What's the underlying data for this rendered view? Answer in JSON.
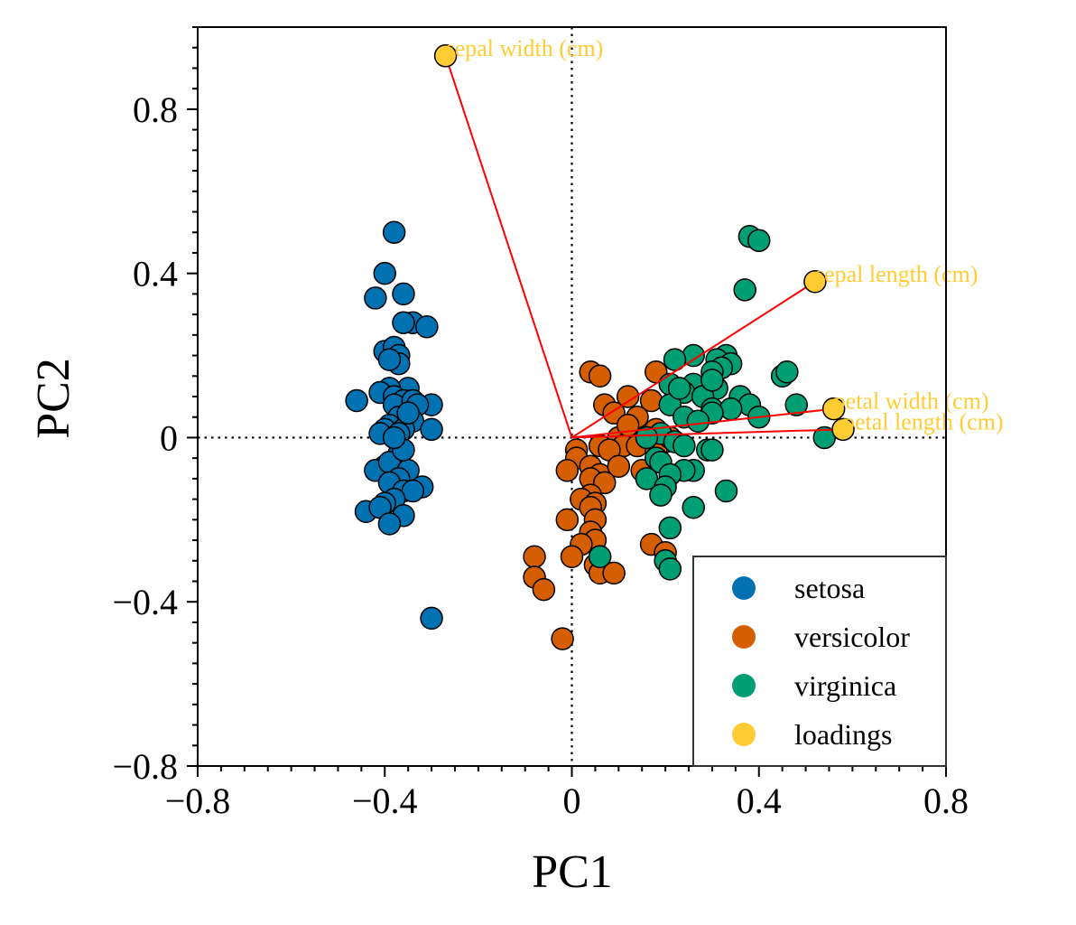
{
  "chart_data": {
    "type": "scatter",
    "title": "",
    "xlabel": "PC1",
    "ylabel": "PC2",
    "xlim": [
      -0.8,
      0.8
    ],
    "ylim": [
      -0.8,
      1.0
    ],
    "xticks": [
      -0.8,
      -0.4,
      0,
      0.4,
      0.8
    ],
    "xtick_labels": [
      "−0.8",
      "−0.4",
      "0",
      "0.4",
      "0.8"
    ],
    "yticks": [
      -0.8,
      -0.4,
      0,
      0.4,
      0.8
    ],
    "ytick_labels": [
      "−0.8",
      "−0.4",
      "0",
      "0.4",
      "0.8"
    ],
    "grid": false,
    "reference_lines": {
      "x": 0,
      "y": 0,
      "style": "dotted"
    },
    "legend": {
      "position": "lower-right",
      "entries": [
        "setosa",
        "versicolor",
        "virginica",
        "loadings"
      ]
    },
    "series": [
      {
        "name": "setosa",
        "color": "#0072B2",
        "points": [
          [
            -0.38,
            0.5
          ],
          [
            -0.4,
            0.4
          ],
          [
            -0.42,
            0.34
          ],
          [
            -0.36,
            0.35
          ],
          [
            -0.34,
            0.28
          ],
          [
            -0.36,
            0.28
          ],
          [
            -0.31,
            0.27
          ],
          [
            -0.4,
            0.21
          ],
          [
            -0.38,
            0.22
          ],
          [
            -0.37,
            0.2
          ],
          [
            -0.37,
            0.18
          ],
          [
            -0.39,
            0.19
          ],
          [
            -0.35,
            0.12
          ],
          [
            -0.39,
            0.12
          ],
          [
            -0.41,
            0.11
          ],
          [
            -0.46,
            0.09
          ],
          [
            -0.38,
            0.1
          ],
          [
            -0.36,
            0.09
          ],
          [
            -0.38,
            0.08
          ],
          [
            -0.34,
            0.09
          ],
          [
            -0.3,
            0.08
          ],
          [
            -0.33,
            0.08
          ],
          [
            -0.37,
            0.05
          ],
          [
            -0.34,
            0.04
          ],
          [
            -0.39,
            0.03
          ],
          [
            -0.36,
            0.02
          ],
          [
            -0.4,
            0.02
          ],
          [
            -0.3,
            0.02
          ],
          [
            -0.41,
            0.01
          ],
          [
            -0.37,
            0.01
          ],
          [
            -0.37,
            -0.04
          ],
          [
            -0.4,
            -0.07
          ],
          [
            -0.42,
            -0.08
          ],
          [
            -0.39,
            -0.06
          ],
          [
            -0.35,
            -0.08
          ],
          [
            -0.37,
            -0.1
          ],
          [
            -0.39,
            -0.11
          ],
          [
            -0.32,
            -0.12
          ],
          [
            -0.36,
            -0.13
          ],
          [
            -0.34,
            -0.13
          ],
          [
            -0.38,
            -0.15
          ],
          [
            -0.4,
            -0.16
          ],
          [
            -0.44,
            -0.18
          ],
          [
            -0.41,
            -0.17
          ],
          [
            -0.36,
            -0.19
          ],
          [
            -0.39,
            -0.21
          ],
          [
            -0.3,
            -0.44
          ],
          [
            -0.36,
            -0.03
          ],
          [
            -0.38,
            0.0
          ],
          [
            -0.35,
            0.06
          ]
        ]
      },
      {
        "name": "versicolor",
        "color": "#D55E00",
        "points": [
          [
            0.04,
            0.16
          ],
          [
            0.06,
            0.15
          ],
          [
            0.18,
            0.16
          ],
          [
            0.22,
            0.12
          ],
          [
            0.12,
            0.1
          ],
          [
            0.17,
            0.09
          ],
          [
            0.07,
            0.08
          ],
          [
            0.09,
            0.06
          ],
          [
            0.14,
            0.05
          ],
          [
            0.12,
            0.02
          ],
          [
            0.17,
            0.01
          ],
          [
            0.1,
            0.0
          ],
          [
            0.2,
            -0.01
          ],
          [
            0.11,
            -0.02
          ],
          [
            0.14,
            -0.02
          ],
          [
            0.18,
            -0.03
          ],
          [
            0.06,
            -0.02
          ],
          [
            0.08,
            -0.03
          ],
          [
            0.01,
            -0.03
          ],
          [
            0.01,
            -0.05
          ],
          [
            0.04,
            -0.07
          ],
          [
            -0.01,
            -0.08
          ],
          [
            0.06,
            -0.09
          ],
          [
            0.1,
            -0.07
          ],
          [
            0.15,
            -0.08
          ],
          [
            0.04,
            -0.1
          ],
          [
            0.07,
            -0.11
          ],
          [
            0.04,
            -0.14
          ],
          [
            0.02,
            -0.15
          ],
          [
            0.05,
            -0.16
          ],
          [
            0.04,
            -0.17
          ],
          [
            -0.01,
            -0.2
          ],
          [
            0.05,
            -0.2
          ],
          [
            0.04,
            -0.23
          ],
          [
            0.05,
            -0.25
          ],
          [
            0.02,
            -0.26
          ],
          [
            0.17,
            -0.26
          ],
          [
            0.2,
            -0.28
          ],
          [
            0.06,
            -0.29
          ],
          [
            0.0,
            -0.29
          ],
          [
            -0.08,
            -0.29
          ],
          [
            0.05,
            -0.31
          ],
          [
            0.06,
            -0.33
          ],
          [
            0.09,
            -0.33
          ],
          [
            -0.08,
            -0.34
          ],
          [
            -0.06,
            -0.37
          ],
          [
            -0.02,
            -0.49
          ],
          [
            0.12,
            0.03
          ],
          [
            0.18,
            0.02
          ],
          [
            0.21,
            0.0
          ]
        ]
      },
      {
        "name": "virginica",
        "color": "#009E73",
        "points": [
          [
            0.38,
            0.49
          ],
          [
            0.4,
            0.48
          ],
          [
            0.37,
            0.36
          ],
          [
            0.26,
            0.2
          ],
          [
            0.33,
            0.2
          ],
          [
            0.22,
            0.19
          ],
          [
            0.31,
            0.19
          ],
          [
            0.34,
            0.18
          ],
          [
            0.32,
            0.17
          ],
          [
            0.3,
            0.16
          ],
          [
            0.45,
            0.15
          ],
          [
            0.46,
            0.16
          ],
          [
            0.26,
            0.13
          ],
          [
            0.31,
            0.12
          ],
          [
            0.21,
            0.13
          ],
          [
            0.24,
            0.11
          ],
          [
            0.28,
            0.1
          ],
          [
            0.36,
            0.1
          ],
          [
            0.48,
            0.08
          ],
          [
            0.38,
            0.08
          ],
          [
            0.21,
            0.08
          ],
          [
            0.3,
            0.07
          ],
          [
            0.34,
            0.07
          ],
          [
            0.3,
            0.06
          ],
          [
            0.24,
            0.05
          ],
          [
            0.4,
            0.05
          ],
          [
            0.19,
            0.01
          ],
          [
            0.16,
            0.0
          ],
          [
            0.22,
            -0.01
          ],
          [
            0.54,
            0.0
          ],
          [
            0.29,
            -0.03
          ],
          [
            0.3,
            -0.03
          ],
          [
            0.18,
            -0.05
          ],
          [
            0.19,
            -0.06
          ],
          [
            0.26,
            -0.08
          ],
          [
            0.24,
            -0.08
          ],
          [
            0.21,
            -0.09
          ],
          [
            0.16,
            -0.1
          ],
          [
            0.2,
            -0.12
          ],
          [
            0.33,
            -0.13
          ],
          [
            0.19,
            -0.14
          ],
          [
            0.26,
            -0.17
          ],
          [
            0.21,
            -0.22
          ],
          [
            0.2,
            -0.3
          ],
          [
            0.06,
            -0.29
          ],
          [
            0.21,
            -0.32
          ],
          [
            0.3,
            0.14
          ],
          [
            0.23,
            0.12
          ],
          [
            0.27,
            0.04
          ],
          [
            0.24,
            -0.02
          ]
        ]
      },
      {
        "name": "loadings",
        "color": "#FFCC33",
        "points": [
          [
            -0.27,
            0.93
          ],
          [
            0.52,
            0.38
          ],
          [
            0.56,
            0.07
          ],
          [
            0.58,
            0.02
          ]
        ],
        "labels": [
          "sepal width (cm)",
          "sepal length (cm)",
          "petal width (cm)",
          "petal length (cm)"
        ],
        "vector_color": "#FF0000"
      }
    ]
  }
}
